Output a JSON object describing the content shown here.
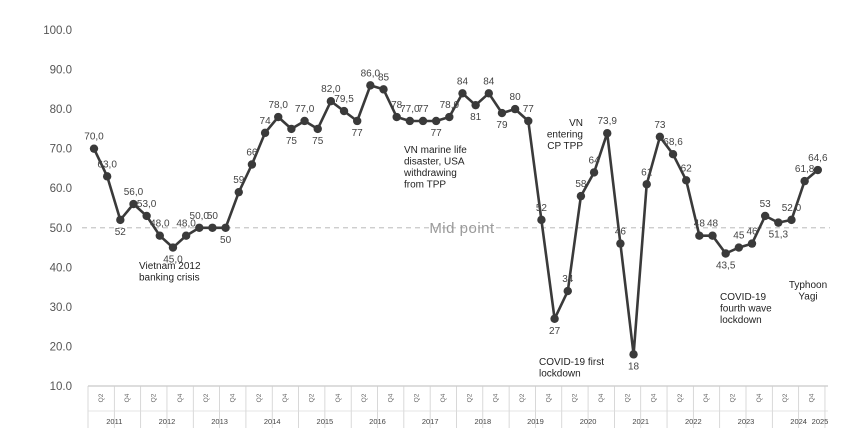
{
  "chart_data": {
    "type": "line",
    "ylim": [
      10,
      100
    ],
    "y_ticks": [
      "100.0",
      "90.0",
      "80.0",
      "70.0",
      "60.0",
      "50.0",
      "40.0",
      "30.0",
      "20.0",
      "10.0"
    ],
    "grid": false,
    "series_color": "#3a3a3a",
    "x": [
      "2011 Q2",
      "2011 Q3",
      "2011 Q4",
      "2012 Q1",
      "2012 Q2",
      "2012 Q3",
      "2012 Q4",
      "2013 Q1",
      "2013 Q2",
      "2013 Q3",
      "2013 Q4",
      "2014 Q1",
      "2014 Q2",
      "2014 Q3",
      "2014 Q4",
      "2015 Q1",
      "2015 Q2",
      "2015 Q3",
      "2015 Q4",
      "2016 Q1",
      "2016 Q2",
      "2016 Q3",
      "2016 Q4",
      "2017 Q1",
      "2017 Q2",
      "2017 Q3",
      "2017 Q4",
      "2018 Q1",
      "2018 Q2",
      "2018 Q3",
      "2018 Q4",
      "2019 Q1",
      "2019 Q2",
      "2019 Q3",
      "2019 Q4",
      "2020 Q1",
      "2020 Q2",
      "2020 Q3",
      "2020 Q4",
      "2021 Q1",
      "2021 Q2",
      "2021 Q3",
      "2021 Q4",
      "2022 Q1",
      "2022 Q2",
      "2022 Q3",
      "2022 Q4",
      "2023 Q1",
      "2023 Q2",
      "2023 Q3",
      "2023 Q4",
      "2024 Q1",
      "2024 Q2",
      "2024 Q3",
      "2024 Q4",
      "2025 Q1"
    ],
    "values": [
      70,
      63,
      52,
      56,
      53,
      48,
      45,
      48,
      50,
      50,
      50,
      59,
      66,
      74,
      78,
      75,
      77,
      75,
      82,
      79.5,
      77,
      86,
      85,
      78,
      77,
      77,
      77,
      78,
      84,
      81,
      84,
      79,
      80,
      77,
      52,
      27,
      34,
      58,
      64,
      73.9,
      46,
      18,
      61,
      73,
      68.6,
      62,
      48,
      48,
      43.5,
      45,
      46,
      53,
      51.3,
      52,
      61.8,
      64.6
    ],
    "labels": [
      "70,0",
      "63,0",
      "52",
      "56,0",
      "53,0",
      "48,0",
      "45,0",
      "48,0",
      "50,0",
      "50",
      "50",
      "59",
      "66",
      "74",
      "78,0",
      "75",
      "77,0",
      "75",
      "82,0",
      "79,5",
      "77",
      "86,0",
      "85",
      "78",
      "77,0",
      "77",
      "77",
      "78,0",
      "84",
      "81",
      "84",
      "79",
      "80",
      "77",
      "52",
      "27",
      "34",
      "58",
      "64",
      "73,9",
      "46",
      "18",
      "61",
      "73",
      "68,6",
      "62",
      "48",
      "48",
      "43,5",
      "45",
      "46",
      "53",
      "51,3",
      "52,0",
      "61,8",
      "64,6"
    ],
    "quarter_ticks": [
      "Q2",
      "Q4",
      "Q2",
      "Q4",
      "Q2",
      "Q4",
      "Q2",
      "Q4",
      "Q2",
      "Q4",
      "Q2",
      "Q4",
      "Q2",
      "Q4",
      "Q2",
      "Q4",
      "Q2",
      "Q4",
      "Q2",
      "Q4",
      "Q2",
      "Q4",
      "Q2",
      "Q4",
      "Q2",
      "Q4",
      "Q2",
      "Q4"
    ],
    "years": [
      "2011",
      "2012",
      "2013",
      "2014",
      "2015",
      "2016",
      "2017",
      "2018",
      "2019",
      "2020",
      "2021",
      "2022",
      "2023",
      "2024",
      "2025"
    ],
    "reference_line": {
      "value": 50,
      "label": "Mid point"
    },
    "annotations": [
      {
        "lines": [
          "Vietnam 2012",
          "banking crisis"
        ]
      },
      {
        "lines": [
          "VN marine life",
          "disaster, USA",
          "withdrawing",
          "from TPP"
        ]
      },
      {
        "lines": [
          "VN",
          "entering",
          "CP TPP"
        ]
      },
      {
        "lines": [
          "COVID-19 first",
          "lockdown"
        ]
      },
      {
        "lines": [
          "COVID-19",
          "fourth wave",
          "lockdown"
        ]
      },
      {
        "lines": [
          "Typhoon",
          "Yagi"
        ]
      }
    ]
  }
}
